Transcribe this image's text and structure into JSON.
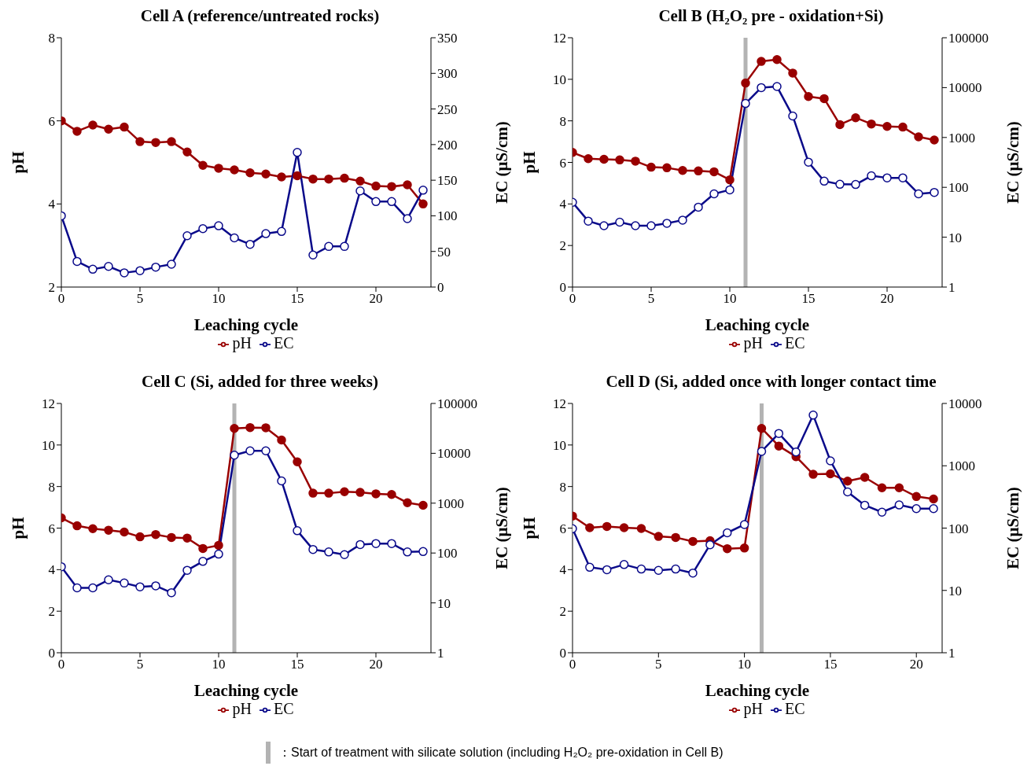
{
  "chart_data": [
    {
      "type": "line",
      "title": "Cell A (reference/untreated rocks)",
      "xlabel": "Leaching cycle",
      "ylabel": "pH",
      "y2label": "EC (μS/cm)",
      "x": [
        0,
        1,
        2,
        3,
        4,
        5,
        6,
        7,
        8,
        9,
        10,
        11,
        12,
        13,
        14,
        15,
        16,
        17,
        18,
        19,
        20,
        21,
        22,
        23
      ],
      "xlim": [
        0,
        23.5
      ],
      "xticks": [
        0,
        5,
        10,
        15,
        20
      ],
      "ylim": [
        2,
        8
      ],
      "yticks": [
        2,
        4,
        6,
        8
      ],
      "y2lim": [
        0,
        350
      ],
      "y2ticks": [
        0,
        50,
        100,
        150,
        200,
        250,
        300,
        350
      ],
      "legend": "bottom",
      "marker": "circle",
      "line_style": "solid",
      "grid": false,
      "series": [
        {
          "name": "pH",
          "color": "#990000",
          "values": [
            6.0,
            5.75,
            5.9,
            5.8,
            5.85,
            5.5,
            5.48,
            5.5,
            5.25,
            4.93,
            4.86,
            4.82,
            4.75,
            4.72,
            4.65,
            4.68,
            4.6,
            4.6,
            4.62,
            4.55,
            4.43,
            4.42,
            4.46,
            4.0
          ]
        },
        {
          "name": "EC",
          "color": "#0a0a8a",
          "axis": "y2",
          "values": [
            100,
            36,
            25,
            29,
            20,
            23,
            28,
            32,
            72,
            82,
            86,
            69,
            60,
            75,
            78,
            189,
            45,
            57,
            57,
            135,
            120,
            120,
            96,
            136
          ]
        }
      ]
    },
    {
      "type": "line",
      "title": "Cell B (H₂O₂ pre - oxidation+Si)",
      "xlabel": "Leaching cycle",
      "ylabel": "pH",
      "y2label": "EC (μS/cm)",
      "x": [
        0,
        1,
        2,
        3,
        4,
        5,
        6,
        7,
        8,
        9,
        10,
        11,
        12,
        13,
        14,
        15,
        16,
        17,
        18,
        19,
        20,
        21,
        22,
        23
      ],
      "xlim": [
        0,
        23.5
      ],
      "xticks": [
        0,
        5,
        10,
        15,
        20
      ],
      "ylim": [
        0,
        12
      ],
      "yticks": [
        0,
        2,
        4,
        6,
        8,
        10,
        12
      ],
      "y2lim": [
        1,
        100000
      ],
      "y2ticks": [
        1,
        10,
        100,
        1000,
        10000,
        100000
      ],
      "log": "y2",
      "legend": "bottom",
      "marker": "circle",
      "line_style": "solid",
      "grid": false,
      "ref_lines": [
        {
          "axis": "x",
          "value": 11,
          "color": "#b3b3b3"
        }
      ],
      "series": [
        {
          "name": "pH",
          "color": "#990000",
          "values": [
            6.48,
            6.18,
            6.15,
            6.12,
            6.06,
            5.77,
            5.74,
            5.61,
            5.59,
            5.55,
            5.16,
            9.82,
            10.86,
            10.95,
            10.3,
            9.17,
            9.07,
            7.82,
            8.15,
            7.85,
            7.73,
            7.7,
            7.23,
            7.08
          ]
        },
        {
          "name": "EC",
          "color": "#0a0a8a",
          "axis": "y2",
          "values": [
            50,
            21,
            17,
            20,
            17,
            17,
            19,
            22,
            40,
            74,
            89,
            4800,
            10000,
            10500,
            2700,
            320,
            133,
            115,
            114,
            170,
            155,
            155,
            74,
            79
          ]
        }
      ]
    },
    {
      "type": "line",
      "title": "Cell C (Si, added for three weeks)",
      "xlabel": "Leaching cycle",
      "ylabel": "pH",
      "y2label": "EC (μS/cm)",
      "x": [
        0,
        1,
        2,
        3,
        4,
        5,
        6,
        7,
        8,
        9,
        10,
        11,
        12,
        13,
        14,
        15,
        16,
        17,
        18,
        19,
        20,
        21,
        22,
        23
      ],
      "xlim": [
        0,
        23.5
      ],
      "xticks": [
        0,
        5,
        10,
        15,
        20
      ],
      "ylim": [
        0,
        12
      ],
      "yticks": [
        0,
        2,
        4,
        6,
        8,
        10,
        12
      ],
      "y2lim": [
        1,
        100000
      ],
      "y2ticks": [
        1,
        10,
        100,
        1000,
        10000,
        100000
      ],
      "log": "y2",
      "legend": "bottom",
      "marker": "circle",
      "line_style": "solid",
      "grid": false,
      "ref_lines": [
        {
          "axis": "x",
          "value": 11,
          "color": "#b3b3b3"
        }
      ],
      "series": [
        {
          "name": "pH",
          "color": "#990000",
          "values": [
            6.49,
            6.11,
            5.97,
            5.9,
            5.81,
            5.58,
            5.69,
            5.55,
            5.52,
            5.02,
            5.17,
            10.8,
            10.84,
            10.83,
            10.24,
            9.19,
            7.68,
            7.68,
            7.75,
            7.72,
            7.65,
            7.62,
            7.22,
            7.1
          ]
        },
        {
          "name": "EC",
          "color": "#0a0a8a",
          "axis": "y2",
          "values": [
            53,
            20,
            20,
            29,
            25,
            21,
            22,
            16,
            45,
            68,
            95,
            9200,
            11200,
            11200,
            2800,
            280,
            118,
            105,
            93,
            148,
            155,
            155,
            105,
            107
          ]
        }
      ]
    },
    {
      "type": "line",
      "title": "Cell D (Si, added once with longer contact time",
      "xlabel": "Leaching cycle",
      "ylabel": "pH",
      "y2label": "EC (μS/cm)",
      "x": [
        0,
        1,
        2,
        3,
        4,
        5,
        6,
        7,
        8,
        9,
        10,
        11,
        12,
        13,
        14,
        15,
        16,
        17,
        18,
        19,
        20,
        21
      ],
      "xlim": [
        0,
        21.5
      ],
      "xticks": [
        0,
        5,
        10,
        15,
        20
      ],
      "ylim": [
        0,
        12
      ],
      "yticks": [
        0,
        2,
        4,
        6,
        8,
        10,
        12
      ],
      "y2lim": [
        1,
        10000
      ],
      "y2ticks": [
        1,
        10,
        100,
        1000,
        10000
      ],
      "log": "y2",
      "legend": "bottom",
      "marker": "circle",
      "line_style": "solid",
      "grid": false,
      "ref_lines": [
        {
          "axis": "x",
          "value": 11,
          "color": "#b3b3b3"
        }
      ],
      "annotations": [
        "：Start of treatment with silicate solution (including H₂O₂ pre-oxidation in Cell B)"
      ],
      "series": [
        {
          "name": "pH",
          "color": "#990000",
          "values": [
            6.58,
            6.02,
            6.08,
            6.02,
            5.98,
            5.6,
            5.55,
            5.36,
            5.39,
            5.01,
            5.04,
            10.8,
            9.95,
            9.44,
            8.59,
            8.61,
            8.26,
            8.44,
            7.94,
            7.94,
            7.52,
            7.4
          ]
        },
        {
          "name": "EC",
          "color": "#0a0a8a",
          "axis": "y2",
          "values": [
            98,
            23.5,
            21.5,
            26,
            22,
            21,
            22,
            19,
            54,
            84,
            114,
            1700,
            3300,
            1660,
            6500,
            1200,
            380,
            233,
            180,
            235,
            205,
            205
          ]
        }
      ]
    }
  ]
}
